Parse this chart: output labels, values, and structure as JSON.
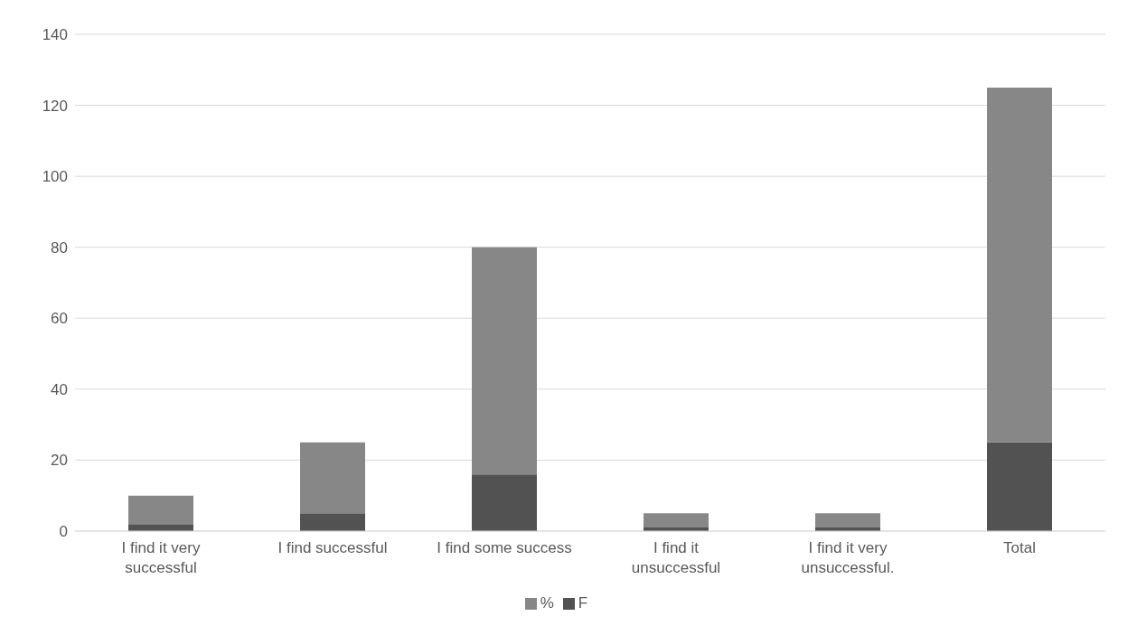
{
  "chart_data": {
    "type": "bar",
    "stacked": true,
    "categories": [
      "I find it very successful",
      "I find successful",
      "I find some success",
      "I find it unsuccessful",
      "I find it very unsuccessful.",
      "Total"
    ],
    "series": [
      {
        "name": "F",
        "color": "#525252",
        "values": [
          2,
          5,
          16,
          1,
          1,
          25
        ]
      },
      {
        "name": "%",
        "color": "#878787",
        "values": [
          8,
          20,
          64,
          4,
          4,
          100
        ]
      }
    ],
    "ylim": [
      0,
      140
    ],
    "yticks": [
      0,
      20,
      40,
      60,
      80,
      100,
      120,
      140
    ],
    "grid": "y",
    "legend": "bottom"
  }
}
